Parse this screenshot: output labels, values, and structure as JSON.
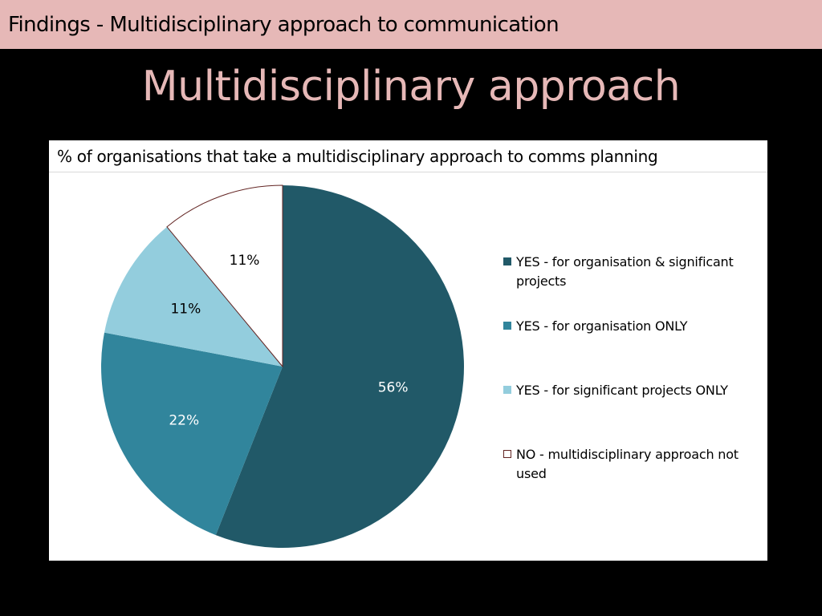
{
  "header": {
    "title": "Findings - Multidisciplinary approach to communication"
  },
  "slide": {
    "title": "Multidisciplinary approach"
  },
  "chart_data": {
    "type": "pie",
    "title": "% of organisations that take a multidisciplinary approach to comms planning",
    "categories": [
      "YES - for organisation & significant projects",
      "YES - for organisation ONLY",
      "YES - for significant projects ONLY",
      "NO - multidisciplinary approach not used"
    ],
    "values": [
      56,
      22,
      11,
      11
    ],
    "data_labels": [
      "56%",
      "22%",
      "11%",
      "11%"
    ],
    "colors": [
      "#215968",
      "#31859c",
      "#93cddd",
      "#ffffff"
    ],
    "slice_outline_color": "#632523",
    "legend_position": "right",
    "grid": false
  },
  "colors": {
    "background": "#000000",
    "header_bar": "#e6b8b7",
    "title_text": "#e6b8b7",
    "plot_background": "#ffffff"
  }
}
